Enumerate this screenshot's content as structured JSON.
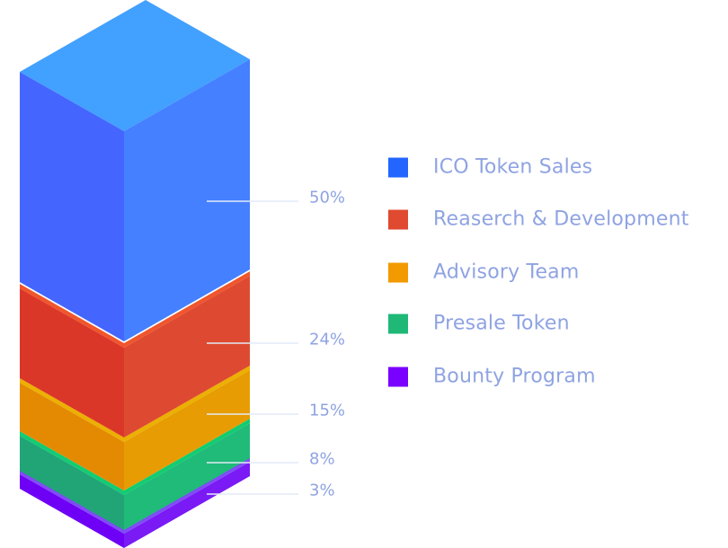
{
  "chart_data": {
    "type": "bar",
    "style": "isometric stacked 3D column",
    "legend_position": "right",
    "categories": [
      "ICO Token Sales",
      "Reaserch & Development",
      "Advisory Team",
      "Presale Token",
      "Bounty Program"
    ],
    "values": [
      50,
      24,
      15,
      8,
      3
    ],
    "data_labels": [
      "50%",
      "24%",
      "15%",
      "8%",
      "3%"
    ],
    "colors": [
      "#2266ff",
      "#e04a30",
      "#f29a00",
      "#20b877",
      "#7a00ff"
    ]
  }
}
